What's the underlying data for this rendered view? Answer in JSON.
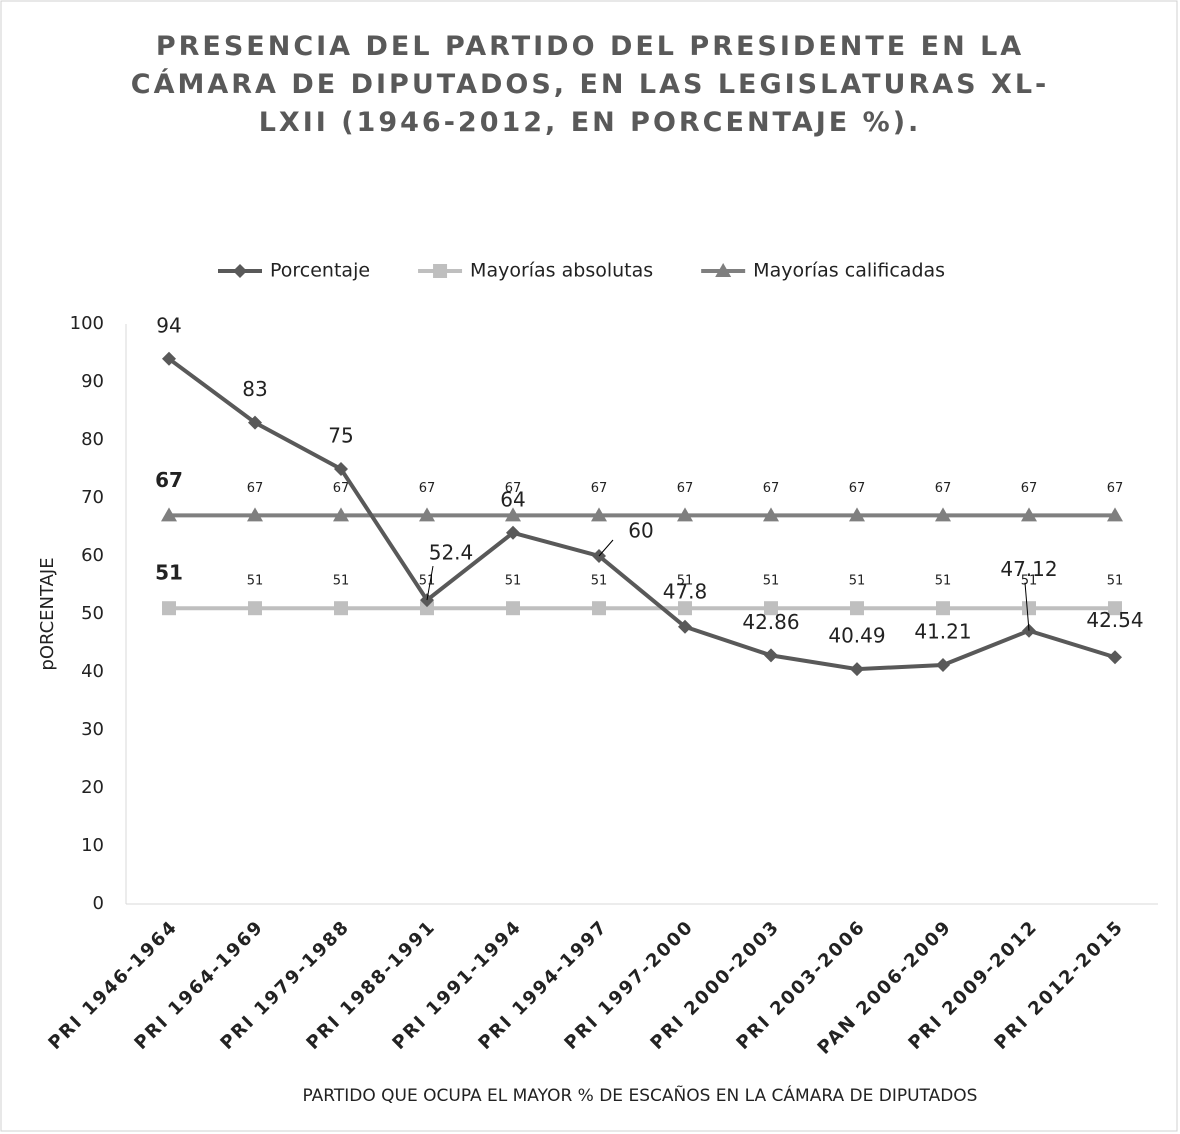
{
  "chart_data": {
    "type": "line",
    "title": "PRESENCIA DEL PARTIDO DEL PRESIDENTE EN LA CÁMARA DE DIPUTADOS, EN LAS LEGISLATURAS XL-LXII (1946-2012, EN PORCENTAJE %).",
    "x_label": "PARTIDO QUE OCUPA EL MAYOR %  DE ESCAÑOS EN LA CÁMARA DE DIPUTADOS",
    "y_label": "pORCENTAJE",
    "categories": [
      "PRI 1946-1964",
      "PRI 1964-1969",
      "PRI 1979-1988",
      "PRI 1988-1991",
      "PRI 1991-1994",
      "PRI 1994-1997",
      "PRI 1997-2000",
      "PRI 2000-2003",
      "PRI 2003-2006",
      "PAN 2006-2009",
      "PRI 2009-2012",
      "PRI 2012-2015"
    ],
    "series": [
      {
        "name": "Porcentaje",
        "color": "#595959",
        "marker": "diamond",
        "values": [
          94,
          83,
          75,
          52.4,
          64,
          60,
          47.8,
          42.86,
          40.49,
          41.21,
          47.12,
          42.54
        ]
      },
      {
        "name": "Mayorías absolutas",
        "color": "#bfbfbf",
        "marker": "square",
        "values": [
          51,
          51,
          51,
          51,
          51,
          51,
          51,
          51,
          51,
          51,
          51,
          51
        ]
      },
      {
        "name": "Mayorías calificadas",
        "color": "#7f7f7f",
        "marker": "triangle",
        "values": [
          67,
          67,
          67,
          67,
          67,
          67,
          67,
          67,
          67,
          67,
          67,
          67
        ]
      }
    ],
    "ylim": [
      0,
      100
    ],
    "yticks": [
      0,
      10,
      20,
      30,
      40,
      50,
      60,
      70,
      80,
      90,
      100
    ],
    "legend": "top",
    "grid": false
  }
}
